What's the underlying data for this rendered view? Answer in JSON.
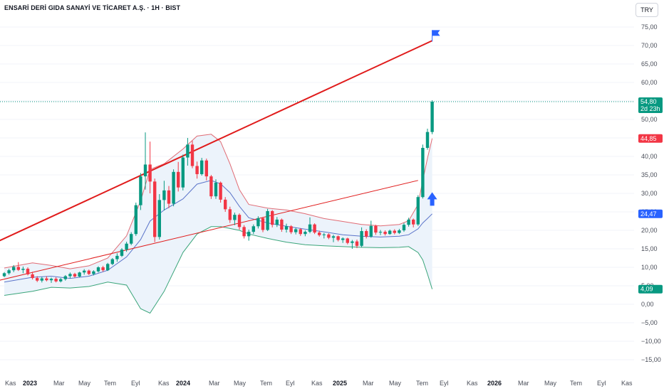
{
  "header": {
    "title": "ENSARİ DERİ GIDA SANAYİ VE TİCARET A.Ş. · 1H · BIST",
    "currency": "TRY"
  },
  "colors": {
    "up": "#089981",
    "down": "#f23645",
    "trendline": "#e01b1b",
    "upper_band": "#e06b74",
    "middle_band": "#5b74c9",
    "lower_band": "#3aa57a",
    "band_fill": "#ecf3fb",
    "price_badge": "#089981",
    "upper_badge": "#f23645",
    "middle_badge": "#2962ff",
    "lower_badge": "#089981",
    "arrow": "#2962ff"
  },
  "price_badges": [
    {
      "value": "54,80",
      "sub": "2d 23h",
      "role": "last-price"
    },
    {
      "value": "44,85",
      "role": "upper-band"
    },
    {
      "value": "24,47",
      "role": "middle-band"
    },
    {
      "value": "4,09",
      "role": "lower-band"
    }
  ],
  "chart_data": {
    "type": "candlestick",
    "symbol": "ENSARİ DERİ GIDA SANAYİ VE TİCARET A.Ş.",
    "exchange": "BIST",
    "interval": "1H",
    "ylim": [
      -17,
      77
    ],
    "y_ticks": [
      75,
      70,
      65,
      60,
      55,
      50,
      45,
      40,
      35,
      30,
      25,
      20,
      15,
      10,
      5,
      0,
      -5,
      -10,
      -15
    ],
    "y_tick_labels": [
      "75,00",
      "70,00",
      "65,00",
      "60,00",
      "55,00",
      "50,00",
      "45,00",
      "40,00",
      "35,00",
      "30,00",
      "25,00",
      "20,00",
      "15,00",
      "10,00",
      "5,00",
      "0,00",
      "−5,00",
      "−10,00",
      "−15,00"
    ],
    "x_axis_labels": [
      {
        "label": "Kas",
        "bold": false
      },
      {
        "label": "2023",
        "bold": true
      },
      {
        "label": "Mar",
        "bold": false
      },
      {
        "label": "May",
        "bold": false
      },
      {
        "label": "Tem",
        "bold": false
      },
      {
        "label": "Eyl",
        "bold": false
      },
      {
        "label": "Kas",
        "bold": false
      },
      {
        "label": "2024",
        "bold": true
      },
      {
        "label": "Mar",
        "bold": false
      },
      {
        "label": "May",
        "bold": false
      },
      {
        "label": "Tem",
        "bold": false
      },
      {
        "label": "Eyl",
        "bold": false
      },
      {
        "label": "Kas",
        "bold": false
      },
      {
        "label": "2025",
        "bold": true
      },
      {
        "label": "Mar",
        "bold": false
      },
      {
        "label": "May",
        "bold": false
      },
      {
        "label": "Tem",
        "bold": false
      },
      {
        "label": "Eyl",
        "bold": false
      },
      {
        "label": "Kas",
        "bold": false
      },
      {
        "label": "2026",
        "bold": true
      },
      {
        "label": "Mar",
        "bold": false
      },
      {
        "label": "May",
        "bold": false
      },
      {
        "label": "Tem",
        "bold": false
      },
      {
        "label": "Eyl",
        "bold": false
      },
      {
        "label": "Kas",
        "bold": false
      }
    ],
    "last_price": 54.8,
    "bollinger_last": {
      "upper": 44.85,
      "middle": 24.47,
      "lower": 4.09
    },
    "candles": [
      {
        "t": 0,
        "o": 7.6,
        "h": 8.7,
        "l": 7.3,
        "c": 8.4
      },
      {
        "t": 1,
        "o": 8.4,
        "h": 9.6,
        "l": 8.0,
        "c": 9.2
      },
      {
        "t": 2,
        "o": 9.2,
        "h": 10.6,
        "l": 8.7,
        "c": 10.1
      },
      {
        "t": 3,
        "o": 10.1,
        "h": 11.4,
        "l": 9.0,
        "c": 9.3
      },
      {
        "t": 4,
        "o": 9.3,
        "h": 10.2,
        "l": 8.4,
        "c": 9.6
      },
      {
        "t": 5,
        "o": 9.6,
        "h": 10.0,
        "l": 7.8,
        "c": 8.1
      },
      {
        "t": 6,
        "o": 8.1,
        "h": 8.8,
        "l": 6.7,
        "c": 7.1
      },
      {
        "t": 7,
        "o": 7.1,
        "h": 7.6,
        "l": 6.0,
        "c": 6.4
      },
      {
        "t": 8,
        "o": 6.4,
        "h": 7.4,
        "l": 5.9,
        "c": 7.0
      },
      {
        "t": 9,
        "o": 7.0,
        "h": 7.6,
        "l": 6.2,
        "c": 6.5
      },
      {
        "t": 10,
        "o": 6.5,
        "h": 7.2,
        "l": 5.8,
        "c": 6.9
      },
      {
        "t": 11,
        "o": 6.9,
        "h": 7.3,
        "l": 5.9,
        "c": 6.2
      },
      {
        "t": 12,
        "o": 6.2,
        "h": 7.1,
        "l": 5.9,
        "c": 6.8
      },
      {
        "t": 13,
        "o": 6.8,
        "h": 7.9,
        "l": 6.4,
        "c": 7.6
      },
      {
        "t": 14,
        "o": 7.6,
        "h": 8.6,
        "l": 7.0,
        "c": 8.2
      },
      {
        "t": 15,
        "o": 8.2,
        "h": 8.5,
        "l": 7.2,
        "c": 7.5
      },
      {
        "t": 16,
        "o": 7.5,
        "h": 8.8,
        "l": 7.3,
        "c": 8.6
      },
      {
        "t": 17,
        "o": 8.6,
        "h": 9.5,
        "l": 8.0,
        "c": 9.1
      },
      {
        "t": 18,
        "o": 9.1,
        "h": 9.4,
        "l": 7.9,
        "c": 8.2
      },
      {
        "t": 19,
        "o": 8.2,
        "h": 9.2,
        "l": 7.8,
        "c": 8.9
      },
      {
        "t": 20,
        "o": 8.9,
        "h": 10.3,
        "l": 8.6,
        "c": 10.0
      },
      {
        "t": 21,
        "o": 10.0,
        "h": 10.4,
        "l": 8.8,
        "c": 9.2
      },
      {
        "t": 22,
        "o": 9.2,
        "h": 11.2,
        "l": 9.0,
        "c": 10.9
      },
      {
        "t": 23,
        "o": 10.9,
        "h": 12.5,
        "l": 10.6,
        "c": 12.2
      },
      {
        "t": 24,
        "o": 12.2,
        "h": 13.8,
        "l": 11.5,
        "c": 13.1
      },
      {
        "t": 25,
        "o": 13.1,
        "h": 15.2,
        "l": 12.8,
        "c": 14.8
      },
      {
        "t": 26,
        "o": 14.8,
        "h": 16.9,
        "l": 14.2,
        "c": 16.4
      },
      {
        "t": 27,
        "o": 16.4,
        "h": 19.5,
        "l": 16.0,
        "c": 19.0
      },
      {
        "t": 28,
        "o": 19.0,
        "h": 27.5,
        "l": 18.5,
        "c": 26.8
      },
      {
        "t": 29,
        "o": 26.8,
        "h": 35.5,
        "l": 25.5,
        "c": 34.6
      },
      {
        "t": 30,
        "o": 34.6,
        "h": 46.5,
        "l": 31.0,
        "c": 37.8
      },
      {
        "t": 31,
        "o": 37.8,
        "h": 44.0,
        "l": 30.0,
        "c": 33.2
      },
      {
        "t": 32,
        "o": 33.2,
        "h": 34.0,
        "l": 16.8,
        "c": 18.2
      },
      {
        "t": 33,
        "o": 18.2,
        "h": 29.8,
        "l": 17.5,
        "c": 28.2
      },
      {
        "t": 34,
        "o": 28.2,
        "h": 33.4,
        "l": 25.4,
        "c": 30.8
      },
      {
        "t": 35,
        "o": 30.8,
        "h": 32.0,
        "l": 26.0,
        "c": 27.2
      },
      {
        "t": 36,
        "o": 27.2,
        "h": 36.5,
        "l": 26.5,
        "c": 35.8
      },
      {
        "t": 37,
        "o": 35.8,
        "h": 38.5,
        "l": 30.5,
        "c": 31.6
      },
      {
        "t": 38,
        "o": 31.6,
        "h": 40.5,
        "l": 30.8,
        "c": 39.7
      },
      {
        "t": 39,
        "o": 39.7,
        "h": 45.0,
        "l": 37.5,
        "c": 43.2
      },
      {
        "t": 40,
        "o": 43.2,
        "h": 44.2,
        "l": 36.8,
        "c": 37.4
      },
      {
        "t": 41,
        "o": 37.4,
        "h": 38.6,
        "l": 34.0,
        "c": 35.2
      },
      {
        "t": 42,
        "o": 35.2,
        "h": 39.6,
        "l": 34.8,
        "c": 38.9
      },
      {
        "t": 43,
        "o": 38.9,
        "h": 39.4,
        "l": 33.5,
        "c": 34.6
      },
      {
        "t": 44,
        "o": 34.6,
        "h": 35.0,
        "l": 28.5,
        "c": 29.2
      },
      {
        "t": 45,
        "o": 29.2,
        "h": 33.8,
        "l": 28.5,
        "c": 32.9
      },
      {
        "t": 46,
        "o": 32.9,
        "h": 33.2,
        "l": 27.5,
        "c": 28.3
      },
      {
        "t": 47,
        "o": 28.3,
        "h": 29.0,
        "l": 25.0,
        "c": 25.7
      },
      {
        "t": 48,
        "o": 25.7,
        "h": 26.4,
        "l": 22.0,
        "c": 22.8
      },
      {
        "t": 49,
        "o": 22.8,
        "h": 24.8,
        "l": 21.4,
        "c": 24.2
      },
      {
        "t": 50,
        "o": 24.2,
        "h": 24.6,
        "l": 20.2,
        "c": 20.9
      },
      {
        "t": 51,
        "o": 20.9,
        "h": 21.4,
        "l": 17.8,
        "c": 18.4
      },
      {
        "t": 52,
        "o": 18.4,
        "h": 20.2,
        "l": 17.2,
        "c": 19.6
      },
      {
        "t": 53,
        "o": 19.6,
        "h": 21.6,
        "l": 19.0,
        "c": 21.1
      },
      {
        "t": 54,
        "o": 21.1,
        "h": 23.8,
        "l": 20.5,
        "c": 23.3
      },
      {
        "t": 55,
        "o": 23.3,
        "h": 23.6,
        "l": 19.5,
        "c": 20.1
      },
      {
        "t": 56,
        "o": 20.1,
        "h": 25.8,
        "l": 19.8,
        "c": 25.2
      },
      {
        "t": 57,
        "o": 25.2,
        "h": 25.5,
        "l": 20.8,
        "c": 21.5
      },
      {
        "t": 58,
        "o": 21.5,
        "h": 23.6,
        "l": 20.9,
        "c": 22.9
      },
      {
        "t": 59,
        "o": 22.9,
        "h": 23.2,
        "l": 19.6,
        "c": 20.2
      },
      {
        "t": 60,
        "o": 20.2,
        "h": 21.8,
        "l": 19.4,
        "c": 21.1
      },
      {
        "t": 61,
        "o": 21.1,
        "h": 21.4,
        "l": 19.0,
        "c": 19.5
      },
      {
        "t": 62,
        "o": 19.5,
        "h": 20.7,
        "l": 18.9,
        "c": 20.3
      },
      {
        "t": 63,
        "o": 20.3,
        "h": 20.6,
        "l": 18.5,
        "c": 19.0
      },
      {
        "t": 64,
        "o": 19.0,
        "h": 20.0,
        "l": 18.4,
        "c": 19.6
      },
      {
        "t": 65,
        "o": 19.6,
        "h": 23.5,
        "l": 19.2,
        "c": 21.6
      },
      {
        "t": 66,
        "o": 21.6,
        "h": 21.9,
        "l": 19.0,
        "c": 19.4
      },
      {
        "t": 67,
        "o": 19.4,
        "h": 19.9,
        "l": 18.3,
        "c": 18.7
      },
      {
        "t": 68,
        "o": 18.7,
        "h": 19.3,
        "l": 17.8,
        "c": 18.9
      },
      {
        "t": 69,
        "o": 18.9,
        "h": 19.2,
        "l": 17.6,
        "c": 18.0
      },
      {
        "t": 70,
        "o": 18.0,
        "h": 18.8,
        "l": 16.8,
        "c": 18.4
      },
      {
        "t": 71,
        "o": 18.4,
        "h": 18.6,
        "l": 17.0,
        "c": 17.4
      },
      {
        "t": 72,
        "o": 17.4,
        "h": 18.1,
        "l": 16.6,
        "c": 17.8
      },
      {
        "t": 73,
        "o": 17.8,
        "h": 18.0,
        "l": 16.2,
        "c": 16.6
      },
      {
        "t": 74,
        "o": 16.6,
        "h": 17.4,
        "l": 15.0,
        "c": 17.0
      },
      {
        "t": 75,
        "o": 17.0,
        "h": 17.5,
        "l": 15.2,
        "c": 15.8
      },
      {
        "t": 76,
        "o": 15.8,
        "h": 20.8,
        "l": 15.4,
        "c": 19.8
      },
      {
        "t": 77,
        "o": 19.8,
        "h": 20.3,
        "l": 17.8,
        "c": 18.3
      },
      {
        "t": 78,
        "o": 18.3,
        "h": 22.6,
        "l": 18.0,
        "c": 21.2
      },
      {
        "t": 79,
        "o": 21.2,
        "h": 21.5,
        "l": 18.8,
        "c": 19.4
      },
      {
        "t": 80,
        "o": 19.4,
        "h": 20.1,
        "l": 18.7,
        "c": 19.6
      },
      {
        "t": 81,
        "o": 19.6,
        "h": 20.0,
        "l": 18.6,
        "c": 19.0
      },
      {
        "t": 82,
        "o": 19.0,
        "h": 20.2,
        "l": 18.8,
        "c": 19.9
      },
      {
        "t": 83,
        "o": 19.9,
        "h": 20.3,
        "l": 18.9,
        "c": 19.3
      },
      {
        "t": 84,
        "o": 19.3,
        "h": 20.4,
        "l": 19.0,
        "c": 20.0
      },
      {
        "t": 85,
        "o": 20.0,
        "h": 22.0,
        "l": 19.6,
        "c": 21.5
      },
      {
        "t": 86,
        "o": 21.5,
        "h": 23.4,
        "l": 21.0,
        "c": 22.9
      },
      {
        "t": 87,
        "o": 22.9,
        "h": 23.2,
        "l": 20.8,
        "c": 21.6
      },
      {
        "t": 88,
        "o": 21.6,
        "h": 29.5,
        "l": 21.2,
        "c": 29.0
      },
      {
        "t": 89,
        "o": 29.0,
        "h": 43.2,
        "l": 28.6,
        "c": 42.3
      },
      {
        "t": 90,
        "o": 42.3,
        "h": 47.5,
        "l": 41.8,
        "c": 46.6
      },
      {
        "t": 91,
        "o": 46.6,
        "h": 55.2,
        "l": 46.0,
        "c": 54.8
      }
    ],
    "bollinger": {
      "upper": [
        [
          0,
          9.8
        ],
        [
          6,
          11.2
        ],
        [
          10,
          10.5
        ],
        [
          14,
          9.6
        ],
        [
          18,
          10.4
        ],
        [
          22,
          12.5
        ],
        [
          26,
          18.5
        ],
        [
          29,
          28
        ],
        [
          31,
          36.5
        ],
        [
          34,
          38
        ],
        [
          38,
          42
        ],
        [
          41,
          45.5
        ],
        [
          44,
          46
        ],
        [
          46,
          44
        ],
        [
          48,
          38
        ],
        [
          50,
          31
        ],
        [
          52,
          27
        ],
        [
          56,
          26
        ],
        [
          60,
          25.5
        ],
        [
          64,
          24.5
        ],
        [
          68,
          23.2
        ],
        [
          72,
          22.4
        ],
        [
          76,
          21.6
        ],
        [
          80,
          21.2
        ],
        [
          84,
          21.6
        ],
        [
          86,
          22.6
        ],
        [
          88,
          27
        ],
        [
          89,
          33.5
        ],
        [
          90,
          39.5
        ],
        [
          91,
          44.85
        ]
      ],
      "middle": [
        [
          0,
          6.0
        ],
        [
          6,
          7.3
        ],
        [
          10,
          7.6
        ],
        [
          14,
          7.0
        ],
        [
          18,
          7.6
        ],
        [
          22,
          9.2
        ],
        [
          26,
          12.8
        ],
        [
          29,
          17.5
        ],
        [
          31,
          22.5
        ],
        [
          34,
          25.5
        ],
        [
          38,
          28.5
        ],
        [
          41,
          32.5
        ],
        [
          44,
          33.5
        ],
        [
          46,
          32.6
        ],
        [
          48,
          30.2
        ],
        [
          50,
          26.5
        ],
        [
          52,
          23.4
        ],
        [
          56,
          22.0
        ],
        [
          60,
          21.1
        ],
        [
          64,
          20.3
        ],
        [
          68,
          19.6
        ],
        [
          72,
          18.8
        ],
        [
          76,
          18.4
        ],
        [
          80,
          18.2
        ],
        [
          84,
          18.4
        ],
        [
          86,
          18.8
        ],
        [
          88,
          20.4
        ],
        [
          89,
          22.0
        ],
        [
          90,
          23.2
        ],
        [
          91,
          24.47
        ]
      ],
      "lower": [
        [
          0,
          2.4
        ],
        [
          6,
          3.5
        ],
        [
          10,
          4.6
        ],
        [
          14,
          4.4
        ],
        [
          18,
          4.8
        ],
        [
          22,
          6.0
        ],
        [
          26,
          5.2
        ],
        [
          29,
          -1.2
        ],
        [
          31,
          -2.4
        ],
        [
          34,
          3.5
        ],
        [
          38,
          14.0
        ],
        [
          41,
          19.0
        ],
        [
          44,
          21.0
        ],
        [
          46,
          21.0
        ],
        [
          48,
          20.5
        ],
        [
          50,
          20.0
        ],
        [
          52,
          19.0
        ],
        [
          56,
          17.8
        ],
        [
          60,
          16.8
        ],
        [
          64,
          16.1
        ],
        [
          68,
          15.8
        ],
        [
          72,
          15.6
        ],
        [
          76,
          15.4
        ],
        [
          80,
          15.3
        ],
        [
          84,
          15.4
        ],
        [
          86,
          15.6
        ],
        [
          88,
          14.0
        ],
        [
          89,
          12.0
        ],
        [
          90,
          8.2
        ],
        [
          91,
          4.09
        ]
      ]
    },
    "trendlines": [
      {
        "name": "upper-trend",
        "from": [
          -1,
          17.2
        ],
        "to": [
          91,
          71.3
        ],
        "width": 2
      },
      {
        "name": "lower-trend",
        "from": [
          -1,
          6.5
        ],
        "to": [
          88,
          33.5
        ],
        "width": 1
      }
    ],
    "annotations": [
      {
        "type": "flag",
        "t": 91,
        "y": 73.4
      },
      {
        "type": "up-arrow",
        "t": 91,
        "y": 28.4
      }
    ]
  }
}
